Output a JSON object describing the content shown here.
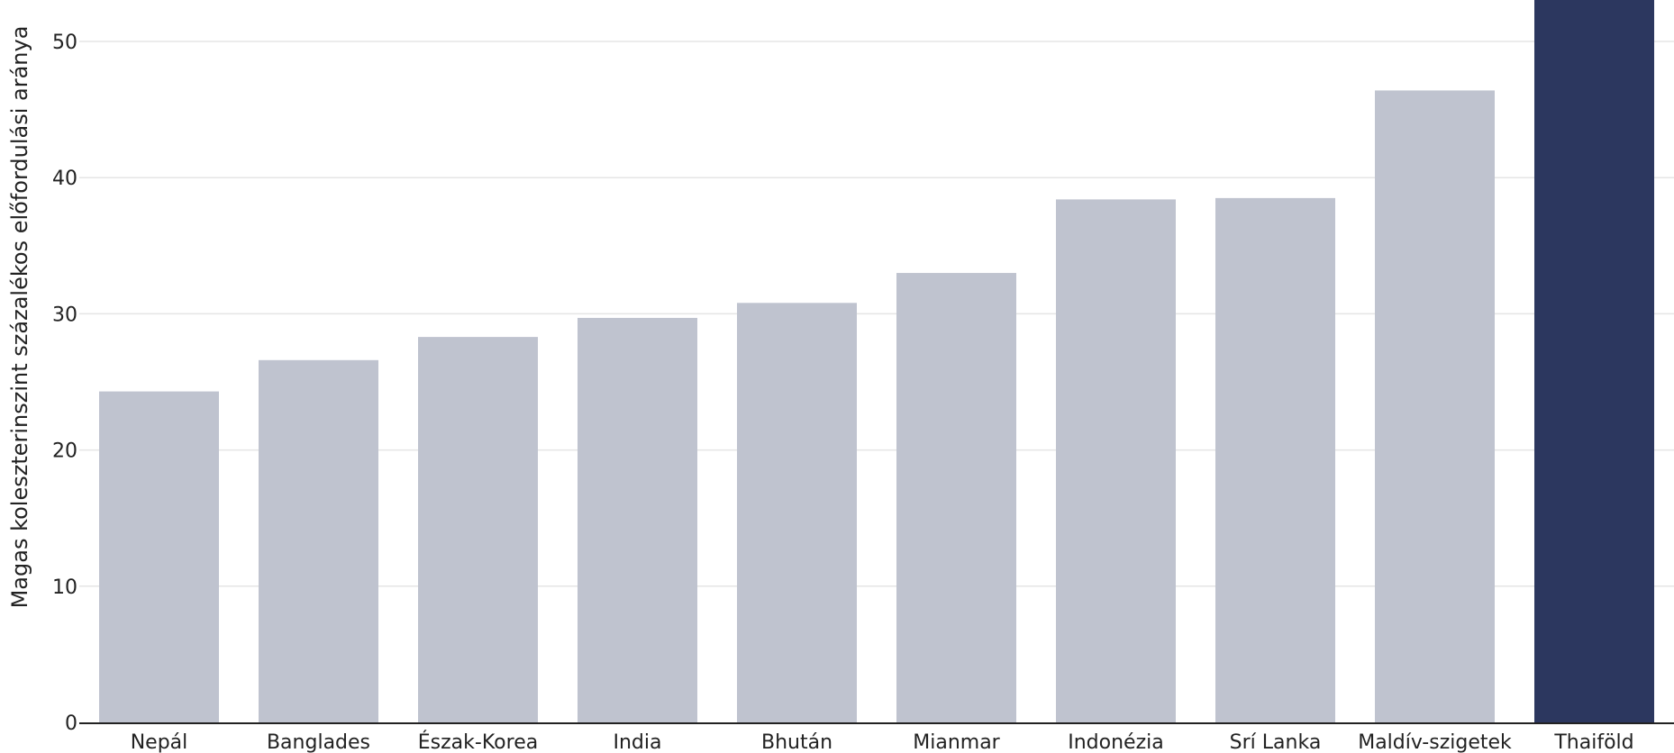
{
  "chart_data": {
    "type": "bar",
    "title": "",
    "xlabel": "",
    "ylabel": "Magas koleszterinszint százalékos előfordulási aránya",
    "categories": [
      "Nepál",
      "Banglades",
      "Észak-Korea",
      "India",
      "Bhután",
      "Mianmar",
      "Indonézia",
      "Srí Lanka",
      "Maldív-szigetek",
      "Thaiföld"
    ],
    "values": [
      24.3,
      26.6,
      28.3,
      29.7,
      30.8,
      33.0,
      38.4,
      38.5,
      46.4,
      53.5
    ],
    "highlight_index": 9,
    "ylim": [
      0,
      53
    ],
    "yticks": [
      0,
      10,
      20,
      30,
      40,
      50
    ],
    "grid": true,
    "colors": {
      "bar": "#bfc3cf",
      "highlight": "#2c375f",
      "grid": "#e5e5e5",
      "axis": "#222222"
    }
  }
}
